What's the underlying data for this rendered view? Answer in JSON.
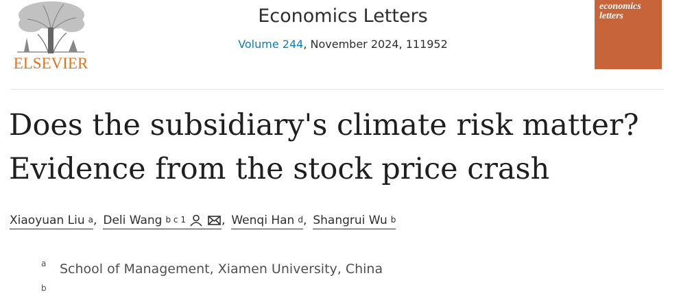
{
  "header": {
    "publisher": "ELSEVIER",
    "journal": "Economics Letters",
    "volume_link": "Volume 244",
    "issue_info": ", November 2024, 111952",
    "cover_lines": [
      "economics",
      "letters"
    ]
  },
  "article": {
    "title_lines": [
      "Does the subsidiary's climate risk matter?",
      "Evidence from the stock price crash"
    ],
    "authors": [
      {
        "name": "Xiaoyuan Liu",
        "sup": "a",
        "separator": ","
      },
      {
        "name": "Deli Wang",
        "sup": "b c 1",
        "separator": ","
      },
      {
        "name": "Wenqi Han",
        "sup": "d",
        "separator": ","
      },
      {
        "name": "Shangrui Wu",
        "sup": "b"
      }
    ],
    "affiliations": [
      {
        "label": "a",
        "text": "School of Management, Xiamen University, China"
      },
      {
        "label": "b"
      }
    ]
  }
}
